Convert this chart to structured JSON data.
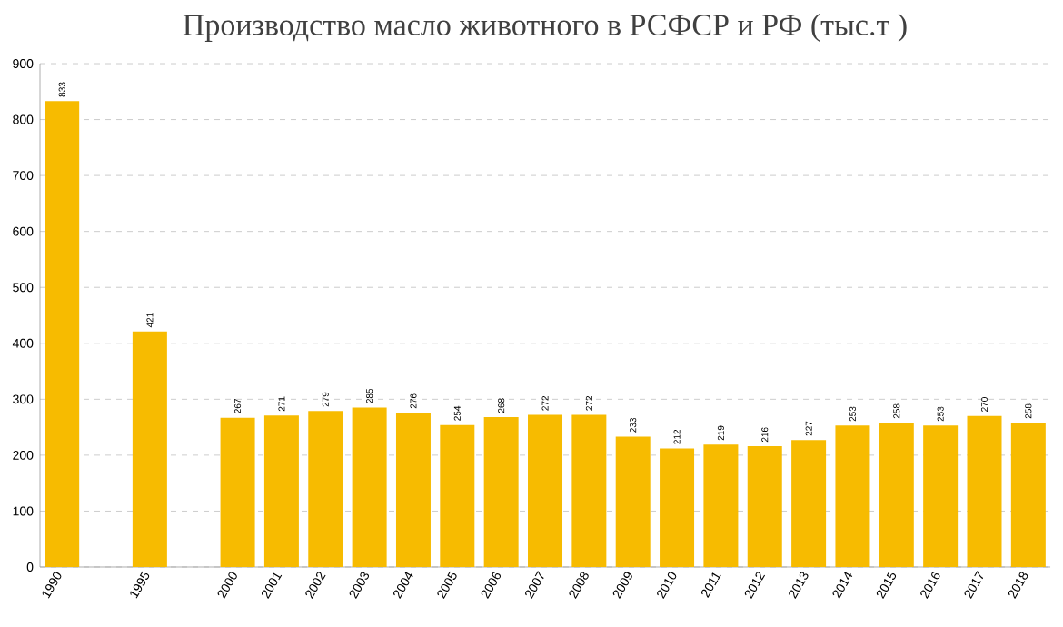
{
  "chart_data": {
    "type": "bar",
    "title": "Производство масло животного в РСФСР и РФ (тыс.т )",
    "categories": [
      "1990",
      null,
      "1995",
      null,
      "2000",
      "2001",
      "2002",
      "2003",
      "2004",
      "2005",
      "2006",
      "2007",
      "2008",
      "2009",
      "2010",
      "2011",
      "2012",
      "2013",
      "2014",
      "2015",
      "2016",
      "2017",
      "2018"
    ],
    "values": [
      833,
      null,
      421,
      null,
      267,
      271,
      279,
      285,
      276,
      254,
      268,
      272,
      272,
      233,
      212,
      219,
      216,
      227,
      253,
      258,
      253,
      270,
      258
    ],
    "color": "#f7bb00",
    "ylim": [
      0,
      900
    ],
    "yticks": [
      0,
      100,
      200,
      300,
      400,
      500,
      600,
      700,
      800,
      900
    ],
    "grid": "y",
    "data_labels": true
  }
}
